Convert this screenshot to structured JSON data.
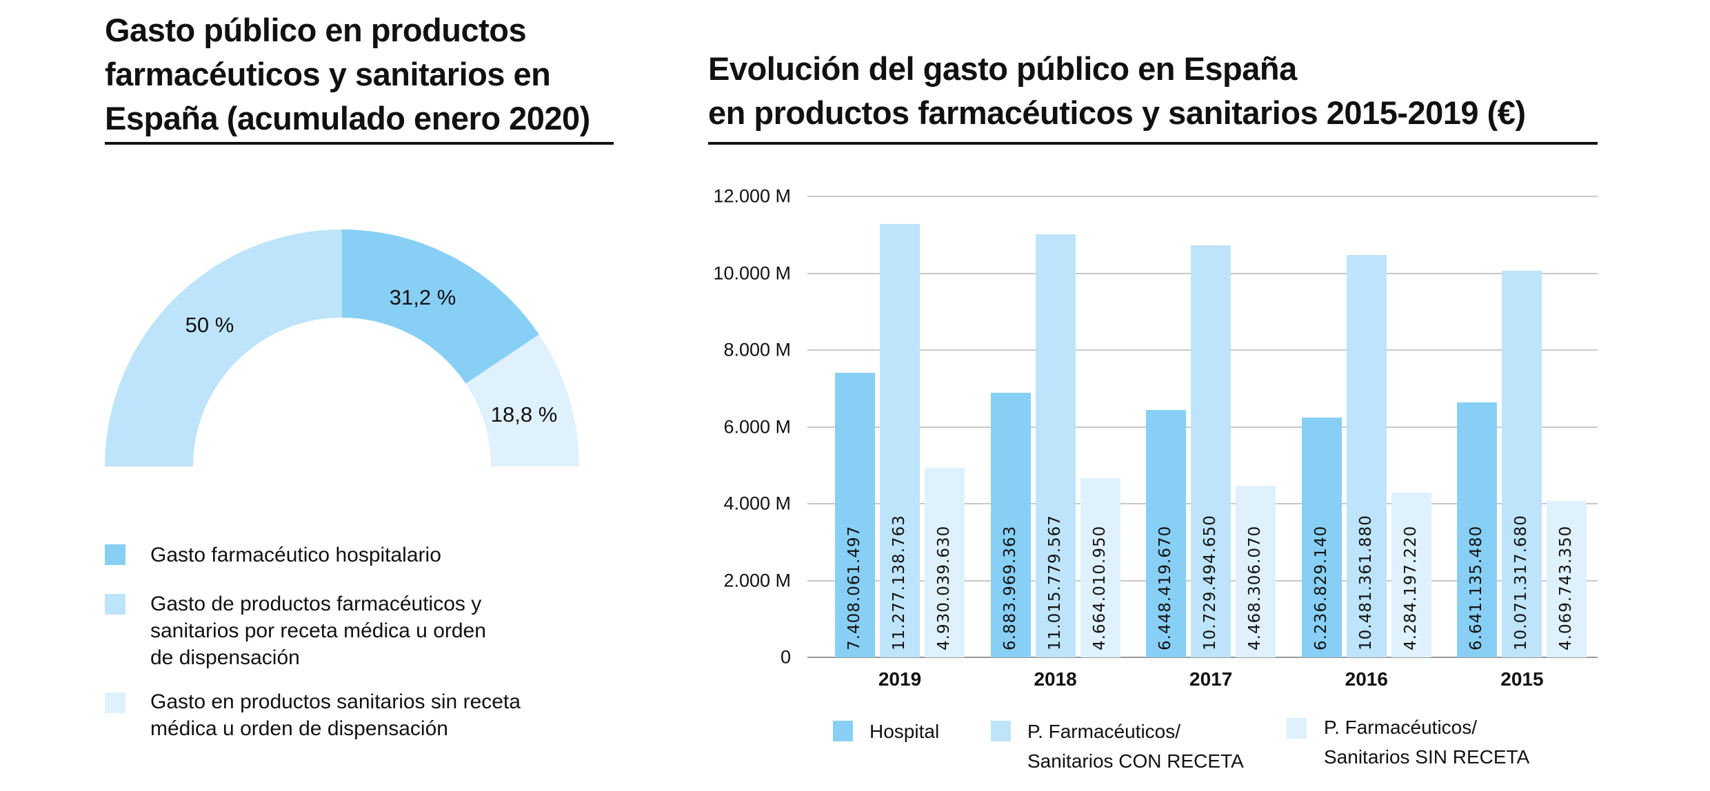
{
  "left": {
    "title_lines": [
      "Gasto público en productos",
      "farmacéuticos y sanitarios en",
      "España (acumulado enero 2020)"
    ],
    "donut": {
      "type": "pie",
      "segments": [
        {
          "label": "Gasto farmacéutico hospitalario",
          "value": 31.2,
          "display": "31,2 %",
          "color": "#88cff5"
        },
        {
          "label": "Gasto de productos farmacéuticos y sanitarios por receta médica u orden de dispensación",
          "value": 50,
          "display": "50 %",
          "color": "#bde4fa"
        },
        {
          "label": "Gasto en productos sanitarios sin receta médica u orden de dispensación",
          "value": 18.8,
          "display": "18,8 %",
          "color": "#dff1fc"
        }
      ]
    },
    "legend": [
      {
        "lines": [
          "Gasto farmacéutico hospitalario"
        ]
      },
      {
        "lines": [
          "Gasto de productos farmacéuticos y",
          "sanitarios por receta médica u orden",
          "de dispensación"
        ]
      },
      {
        "lines": [
          "Gasto en productos sanitarios sin receta",
          "médica u orden de dispensación"
        ]
      }
    ]
  },
  "chart_data": {
    "type": "bar",
    "title_lines": [
      "Evolución del gasto público en España",
      "en productos farmacéuticos y sanitarios 2015-2019 (€)"
    ],
    "categories": [
      "2019",
      "2018",
      "2017",
      "2016",
      "2015"
    ],
    "series": [
      {
        "name": "Hospital",
        "color": "#88cff5",
        "values": [
          7408061497,
          6883969363,
          6448419670,
          6236829140,
          6641135480
        ],
        "labels": [
          "7.408.061.497",
          "6.883.969.363",
          "6.448.419.670",
          "6.236.829.140",
          "6.641.135.480"
        ]
      },
      {
        "name": "P. Farmacéuticos/ Sanitarios CON RECETA",
        "color": "#bde4fa",
        "values": [
          11277138763,
          11015779567,
          10729494650,
          10481361880,
          10071317680
        ],
        "labels": [
          "11.277.138.763",
          "11.015.779.567",
          "10.729.494.650",
          "10.481.361.880",
          "10.071.317.680"
        ]
      },
      {
        "name": "P. Farmacéuticos/ Sanitarios SIN RECETA",
        "color": "#dff1fc",
        "values": [
          4930039630,
          4664010950,
          4468306070,
          4284197220,
          4069743350
        ],
        "labels": [
          "4.930.039.630",
          "4.664.010.950",
          "4.468.306.070",
          "4.284.197.220",
          "4.069.743.350"
        ]
      }
    ],
    "legend_lines": [
      [
        "Hospital"
      ],
      [
        "P. Farmacéuticos/",
        "Sanitarios CON RECETA"
      ],
      [
        "P. Farmacéuticos/",
        "Sanitarios SIN RECETA"
      ]
    ],
    "y_ticks": [
      0,
      2000000000,
      4000000000,
      6000000000,
      8000000000,
      10000000000,
      12000000000
    ],
    "y_tick_labels": [
      "0",
      "2.000 M",
      "4.000 M",
      "6.000 M",
      "8.000 M",
      "10.000 M",
      "12.000 M"
    ],
    "ylim": [
      0,
      12000000000
    ],
    "grid": true,
    "legend_position": "bottom"
  }
}
